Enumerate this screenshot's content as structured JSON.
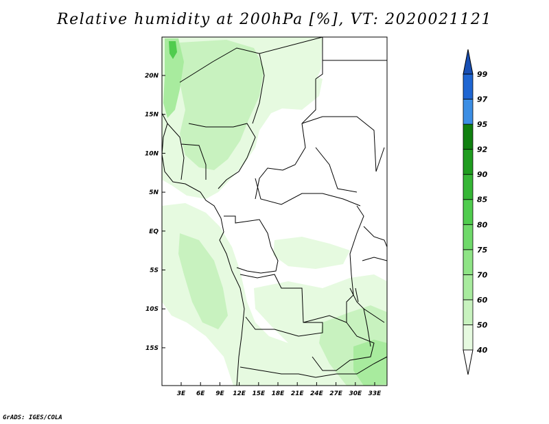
{
  "title": "Relative humidity at 200hPa [%], VT: 2020021121",
  "credit": "GrADS: IGES/COLA",
  "map": {
    "lat_labels": [
      "20N",
      "15N",
      "10N",
      "5N",
      "EQ",
      "5S",
      "10S",
      "15S"
    ],
    "lon_labels": [
      "3E",
      "6E",
      "9E",
      "12E",
      "15E",
      "18E",
      "21E",
      "24E",
      "27E",
      "30E",
      "33E"
    ]
  },
  "colorbar": {
    "levels": [
      "40",
      "50",
      "60",
      "70",
      "75",
      "80",
      "85",
      "90",
      "92",
      "95",
      "97",
      "99"
    ],
    "colors": [
      "#ffffff",
      "#e6fae0",
      "#c8f2bf",
      "#a8eb9e",
      "#8fe486",
      "#6fd96a",
      "#50cc4e",
      "#36b636",
      "#1f9c1f",
      "#108010",
      "#3c8ee4",
      "#1f66d2",
      "#184fb4"
    ]
  },
  "fill_colors": {
    "light": "#e6fae0",
    "mid": "#c8f2bf",
    "strong": "#a8eb9e",
    "peak": "#50cc4e"
  }
}
